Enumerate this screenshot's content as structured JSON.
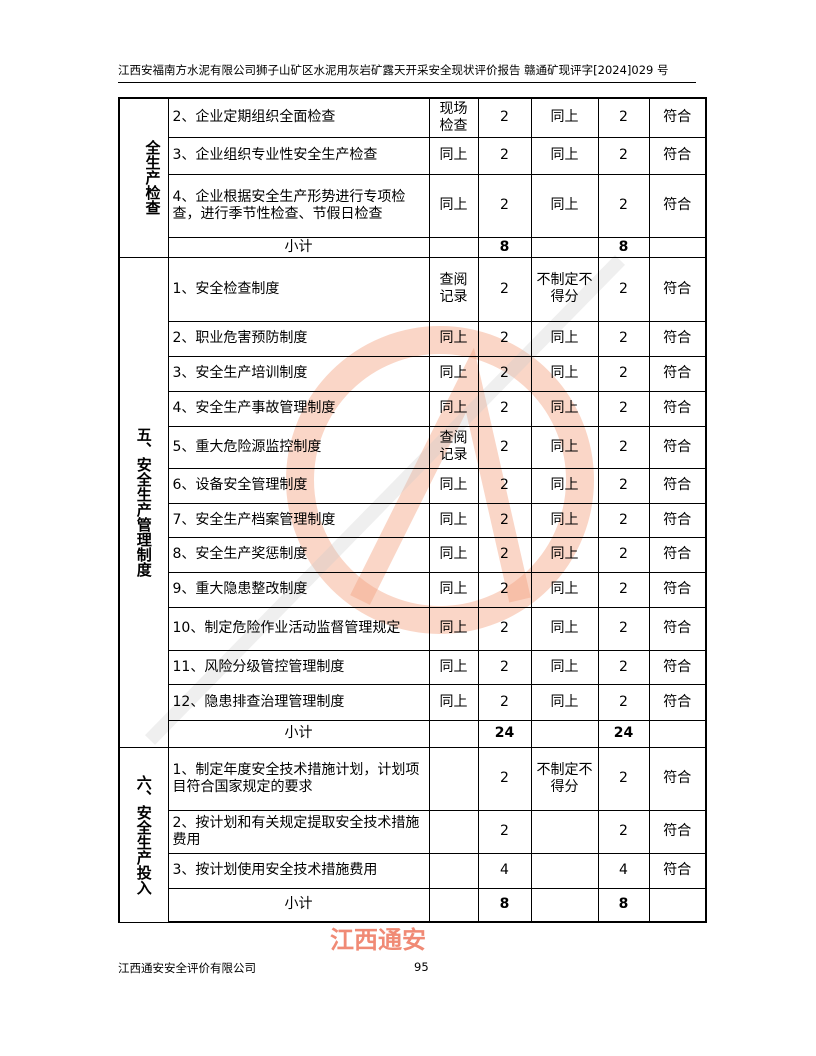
{
  "header": {
    "title": "江西安福南方水泥有限公司狮子山矿区水泥用灰岩矿露天开采安全现状评价报告 赣通矿现评字[2024]029 号"
  },
  "sections": [
    {
      "name": "全生产检查",
      "rows": [
        {
          "item": "2、企业定期组织全面检查",
          "method": "现场检查",
          "score": "2",
          "rule": "同上",
          "got": "2",
          "result": "符合"
        },
        {
          "item": "3、企业组织专业性安全生产检查",
          "method": "同上",
          "score": "2",
          "rule": "同上",
          "got": "2",
          "result": "符合"
        },
        {
          "item": "4、企业根据安全生产形势进行专项检查，进行季节性检查、节假日检查",
          "method": "同上",
          "score": "2",
          "rule": "同上",
          "got": "2",
          "result": "符合"
        }
      ],
      "subtotal": {
        "label": "小计",
        "score": "8",
        "got": "8"
      }
    },
    {
      "name": "五、安全生产管理制度",
      "rows": [
        {
          "item": "1、安全检查制度",
          "method": "查阅记录",
          "score": "2",
          "rule": "不制定不得分",
          "got": "2",
          "result": "符合"
        },
        {
          "item": "2、职业危害预防制度",
          "method": "同上",
          "score": "2",
          "rule": "同上",
          "got": "2",
          "result": "符合"
        },
        {
          "item": "3、安全生产培训制度",
          "method": "同上",
          "score": "2",
          "rule": "同上",
          "got": "2",
          "result": "符合"
        },
        {
          "item": "4、安全生产事故管理制度",
          "method": "同上",
          "score": "2",
          "rule": "同上",
          "got": "2",
          "result": "符合"
        },
        {
          "item": "5、重大危险源监控制度",
          "method": "查阅记录",
          "score": "2",
          "rule": "同上",
          "got": "2",
          "result": "符合"
        },
        {
          "item": "6、设备安全管理制度",
          "method": "同上",
          "score": "2",
          "rule": "同上",
          "got": "2",
          "result": "符合"
        },
        {
          "item": "7、安全生产档案管理制度",
          "method": "同上",
          "score": "2",
          "rule": "同上",
          "got": "2",
          "result": "符合"
        },
        {
          "item": "8、安全生产奖惩制度",
          "method": "同上",
          "score": "2",
          "rule": "同上",
          "got": "2",
          "result": "符合"
        },
        {
          "item": "9、重大隐患整改制度",
          "method": "同上",
          "score": "2",
          "rule": "同上",
          "got": "2",
          "result": "符合"
        },
        {
          "item": "10、制定危险作业活动监督管理规定",
          "method": "同上",
          "score": "2",
          "rule": "同上",
          "got": "2",
          "result": "符合"
        },
        {
          "item": "11、风险分级管控管理制度",
          "method": "同上",
          "score": "2",
          "rule": "同上",
          "got": "2",
          "result": "符合"
        },
        {
          "item": "12、隐患排查治理管理制度",
          "method": "同上",
          "score": "2",
          "rule": "同上",
          "got": "2",
          "result": "符合"
        }
      ],
      "subtotal": {
        "label": "小计",
        "score": "24",
        "got": "24"
      }
    },
    {
      "name": "六、安全生产投入",
      "rows": [
        {
          "item": "1、制定年度安全技术措施计划，计划项目符合国家规定的要求",
          "method": "",
          "score": "2",
          "rule": "不制定不得分",
          "got": "2",
          "result": "符合"
        },
        {
          "item": "2、按计划和有关规定提取安全技术措施费用",
          "method": "",
          "score": "2",
          "rule": "",
          "got": "2",
          "result": "符合"
        },
        {
          "item": "3、按计划使用安全技术措施费用",
          "method": "",
          "score": "4",
          "rule": "",
          "got": "4",
          "result": "符合"
        }
      ],
      "subtotal": {
        "label": "小计",
        "score": "8",
        "got": "8"
      }
    }
  ],
  "watermark": {
    "text": "江西通安",
    "arc_text": "江西通安安全评价有限公司",
    "color": "#e8462a"
  },
  "footer": {
    "company": "江西通安安全评价有限公司",
    "page": "95"
  }
}
